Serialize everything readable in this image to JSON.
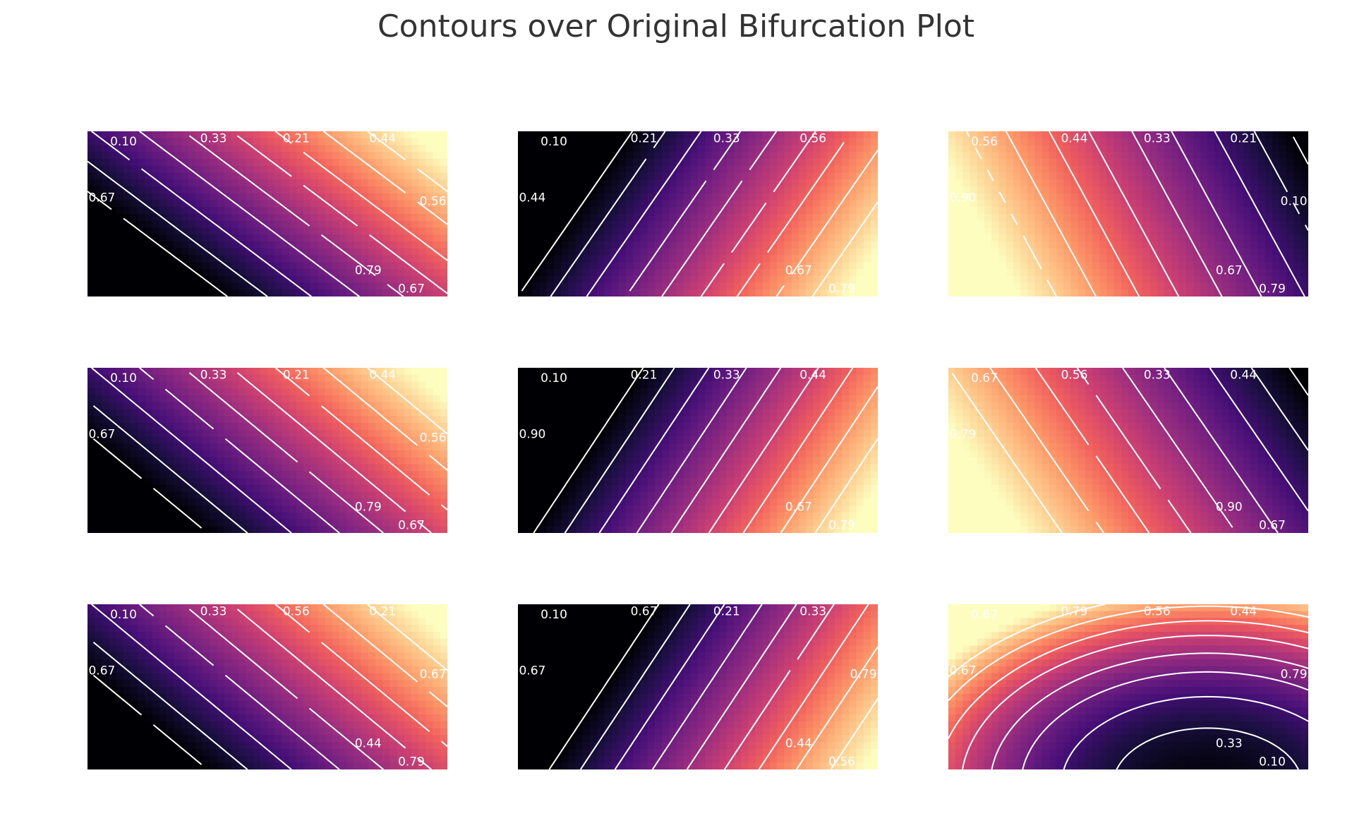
{
  "title": "Contours over Original Bifurcation Plot",
  "colormap": {
    "name": "magma",
    "stops": [
      "#000004",
      "#180f3d",
      "#440f76",
      "#721f81",
      "#9e2f7f",
      "#cd4071",
      "#f1605d",
      "#fd9668",
      "#feca8d",
      "#fcfdbf"
    ]
  },
  "contour_line_color": "#ffffff",
  "chart_data": {
    "type": "heatmap",
    "layout": "3x3 grid of filled contour plots",
    "levels": [
      0.0,
      0.1,
      0.21,
      0.33,
      0.44,
      0.56,
      0.67,
      0.79,
      0.9
    ],
    "panels": [
      {
        "id": "p11",
        "pattern": "diagonal",
        "gx": 0.9,
        "gy": -0.55,
        "c": 0.2,
        "labels": [
          "0.10",
          "0.33",
          "0.21",
          "0.44",
          "0.79",
          "0.67",
          "0.67",
          "0.56"
        ]
      },
      {
        "id": "p12",
        "pattern": "diagonal",
        "gx": 1.1,
        "gy": 0.35,
        "c": -0.35,
        "labels": [
          "0.10",
          "0.21",
          "0.33",
          "0.56",
          "0.67",
          "0.79",
          "0.44"
        ]
      },
      {
        "id": "p13",
        "pattern": "diagonal",
        "gx": -1.0,
        "gy": 0.25,
        "c": 0.95,
        "labels": [
          "0.56",
          "0.44",
          "0.33",
          "0.21",
          "0.67",
          "0.79",
          "0.90",
          "0.10"
        ]
      },
      {
        "id": "p21",
        "pattern": "diagonal",
        "gx": 0.9,
        "gy": -0.5,
        "c": 0.2,
        "labels": [
          "0.10",
          "0.33",
          "0.21",
          "0.44",
          "0.79",
          "0.67",
          "0.67",
          "0.56"
        ]
      },
      {
        "id": "p22",
        "pattern": "diagonal",
        "gx": 1.15,
        "gy": 0.35,
        "c": -0.4,
        "labels": [
          "0.10",
          "0.21",
          "0.33",
          "0.44",
          "0.67",
          "0.79",
          "0.90"
        ]
      },
      {
        "id": "p23",
        "pattern": "diagonal",
        "gx": -0.95,
        "gy": 0.3,
        "c": 0.9,
        "labels": [
          "0.67",
          "0.56",
          "0.33",
          "0.44",
          "0.90",
          "0.67",
          "0.79"
        ]
      },
      {
        "id": "p31",
        "pattern": "diagonal",
        "gx": 0.9,
        "gy": -0.5,
        "c": 0.2,
        "labels": [
          "0.10",
          "0.33",
          "0.56",
          "0.21",
          "0.44",
          "0.79",
          "0.67",
          "0.67"
        ]
      },
      {
        "id": "p32",
        "pattern": "diagonal",
        "gx": 1.15,
        "gy": 0.35,
        "c": -0.45,
        "labels": [
          "0.10",
          "0.67",
          "0.21",
          "0.33",
          "0.44",
          "0.56",
          "0.67",
          "0.79"
        ]
      },
      {
        "id": "p33",
        "pattern": "bowl",
        "cx": 0.72,
        "cy": 1.1,
        "c": 0.02,
        "ax": 1.15,
        "ay": 0.65,
        "labels": [
          "0.67",
          "0.79",
          "0.56",
          "0.44",
          "0.33",
          "0.10",
          "0.67",
          "0.79"
        ]
      }
    ]
  }
}
